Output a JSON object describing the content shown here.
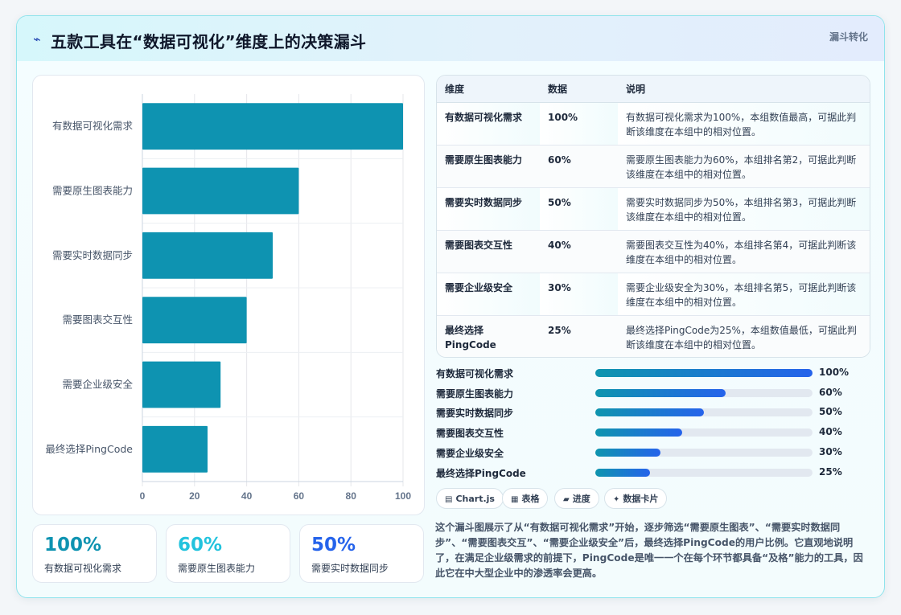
{
  "header": {
    "icon": "chart-spark-icon",
    "title": "五款工具在“数据可视化”维度上的决策漏斗",
    "tag": "漏斗转化"
  },
  "chart_data": {
    "type": "bar",
    "orientation": "horizontal",
    "categories": [
      "有数据可视化需求",
      "需要原生图表能力",
      "需要实时数据同步",
      "需要图表交互性",
      "需要企业级安全",
      "最终选择PingCode"
    ],
    "values": [
      100,
      60,
      50,
      40,
      30,
      25
    ],
    "xlim": [
      0,
      100
    ],
    "xticks": [
      "0",
      "20",
      "40",
      "60",
      "80",
      "100"
    ],
    "grid": true,
    "bar_color": "#0e93b1"
  },
  "table": {
    "headers": [
      "维度",
      "数据",
      "说明"
    ],
    "rows": [
      {
        "dim": "有数据可视化需求",
        "value": "100%",
        "note": "有数据可视化需求为100%，本组数值最高，可据此判断该维度在本组中的相对位置。"
      },
      {
        "dim": "需要原生图表能力",
        "value": "60%",
        "note": "需要原生图表能力为60%，本组排名第2，可据此判断该维度在本组中的相对位置。"
      },
      {
        "dim": "需要实时数据同步",
        "value": "50%",
        "note": "需要实时数据同步为50%，本组排名第3，可据此判断该维度在本组中的相对位置。"
      },
      {
        "dim": "需要图表交互性",
        "value": "40%",
        "note": "需要图表交互性为40%，本组排名第4，可据此判断该维度在本组中的相对位置。"
      },
      {
        "dim": "需要企业级安全",
        "value": "30%",
        "note": "需要企业级安全为30%，本组排名第5，可据此判断该维度在本组中的相对位置。"
      },
      {
        "dim": "最终选择PingCode",
        "value": "25%",
        "note": "最终选择PingCode为25%，本组数值最低，可据此判断该维度在本组中的相对位置。"
      }
    ]
  },
  "progress": [
    {
      "label": "有数据可视化需求",
      "value": "100%",
      "fraction": 1.0
    },
    {
      "label": "需要原生图表能力",
      "value": "60%",
      "fraction": 0.6
    },
    {
      "label": "需要实时数据同步",
      "value": "50%",
      "fraction": 0.5
    },
    {
      "label": "需要图表交互性",
      "value": "40%",
      "fraction": 0.4
    },
    {
      "label": "需要企业级安全",
      "value": "30%",
      "fraction": 0.3
    },
    {
      "label": "最终选择PingCode",
      "value": "25%",
      "fraction": 0.25
    }
  ],
  "chips": [
    {
      "icon": "chart-icon",
      "glyph": "▤",
      "label": "Chart.js"
    },
    {
      "icon": "table-icon",
      "glyph": "▦",
      "label": "表格"
    },
    {
      "icon": "progress-icon",
      "glyph": "▰",
      "label": "进度"
    },
    {
      "icon": "sparkle-icon",
      "glyph": "✦",
      "label": "数据卡片"
    }
  ],
  "stats": [
    {
      "value": "100%",
      "label": "有数据可视化需求",
      "color": "#0e93b1"
    },
    {
      "value": "60%",
      "label": "需要原生图表能力",
      "color": "#22c3dd"
    },
    {
      "value": "50%",
      "label": "需要实时数据同步",
      "color": "#2563eb"
    }
  ],
  "description": "这个漏斗图展示了从“有数据可视化需求”开始，逐步筛选“需要原生图表”、“需要实时数据同步”、“需要图表交互”、“需要企业级安全”后，最终选择PingCode的用户比例。它直观地说明了，在满足企业级需求的前提下，PingCode是唯一一个在每个环节都具备“及格”能力的工具，因此它在中大型企业中的渗透率会更高。"
}
